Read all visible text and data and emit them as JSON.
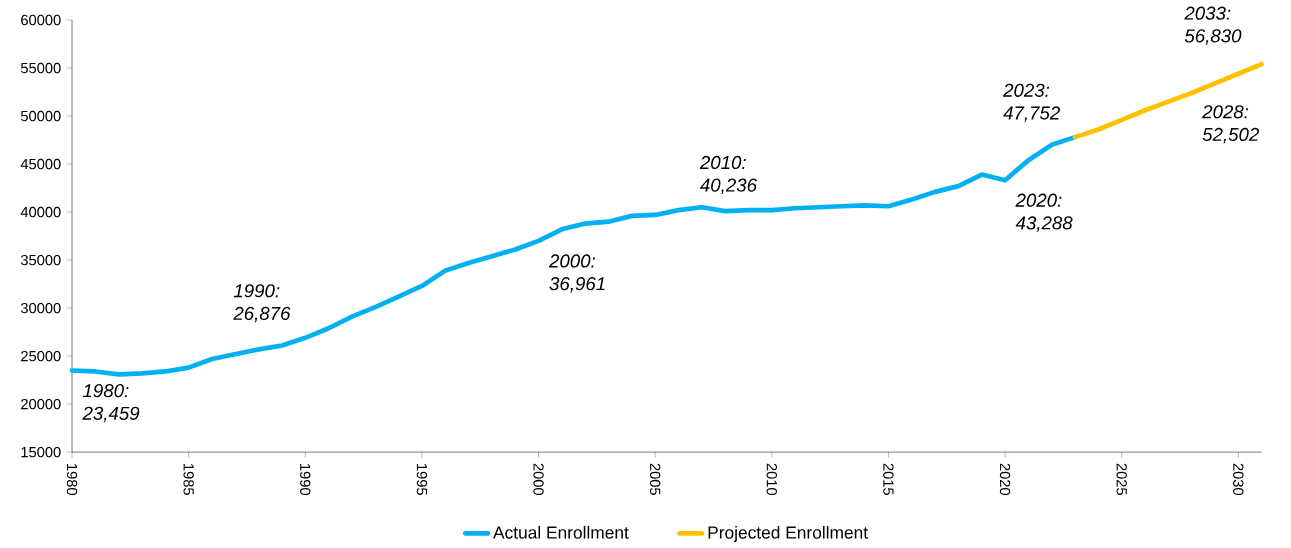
{
  "chart_data": {
    "type": "line",
    "xlim": [
      1980,
      2031
    ],
    "xticks": [
      1980,
      1985,
      1990,
      1995,
      2000,
      2005,
      2010,
      2015,
      2020,
      2025,
      2030
    ],
    "ylim": [
      15000,
      60000
    ],
    "yticks": [
      15000,
      20000,
      25000,
      30000,
      35000,
      40000,
      45000,
      50000,
      55000,
      60000
    ],
    "legend": "bottom",
    "series": [
      {
        "name": "Actual Enrollment",
        "color": "#00b0f0",
        "x": [
          1980,
          1981,
          1982,
          1983,
          1984,
          1985,
          1986,
          1987,
          1988,
          1989,
          1990,
          1991,
          1992,
          1993,
          1994,
          1995,
          1996,
          1997,
          1998,
          1999,
          2000,
          2001,
          2002,
          2003,
          2004,
          2005,
          2006,
          2007,
          2008,
          2009,
          2010,
          2011,
          2012,
          2013,
          2014,
          2015,
          2016,
          2017,
          2018,
          2019,
          2020,
          2021,
          2022,
          2023
        ],
        "values": [
          23500,
          23400,
          23100,
          23200,
          23400,
          23800,
          24700,
          25200,
          25700,
          26100,
          26900,
          27900,
          29100,
          30100,
          31200,
          32300,
          33900,
          34700,
          35400,
          36100,
          37000,
          38200,
          38800,
          39000,
          39600,
          39700,
          40200,
          40500,
          40100,
          40200,
          40200,
          40400,
          40500,
          40600,
          40700,
          40600,
          41300,
          42100,
          42700,
          43900,
          43300,
          45400,
          47000,
          47800
        ]
      },
      {
        "name": "Projected Enrollment",
        "color": "#ffc000",
        "x": [
          2023,
          2024,
          2025,
          2026,
          2027,
          2028,
          2029,
          2030,
          2031
        ],
        "values": [
          47800,
          48600,
          49600,
          50600,
          51500,
          52400,
          53400,
          54400,
          55400
        ]
      }
    ],
    "annotations": [
      {
        "text": "1980: 23,459",
        "x": 1980,
        "y": 23459
      },
      {
        "text": "1990: 26,876",
        "x": 1990,
        "y": 26876
      },
      {
        "text": "2000: 36,961",
        "x": 2000,
        "y": 36961
      },
      {
        "text": "2010: 40,236",
        "x": 2010,
        "y": 40236
      },
      {
        "text": "2020: 43,288",
        "x": 2020,
        "y": 43288
      },
      {
        "text": "*2023:* 47,752",
        "x": 2023,
        "y": 47752
      },
      {
        "text": "*2028:* 52,502",
        "x": 2028,
        "y": 52502
      },
      "*2033:* 56,830"
    ]
  }
}
